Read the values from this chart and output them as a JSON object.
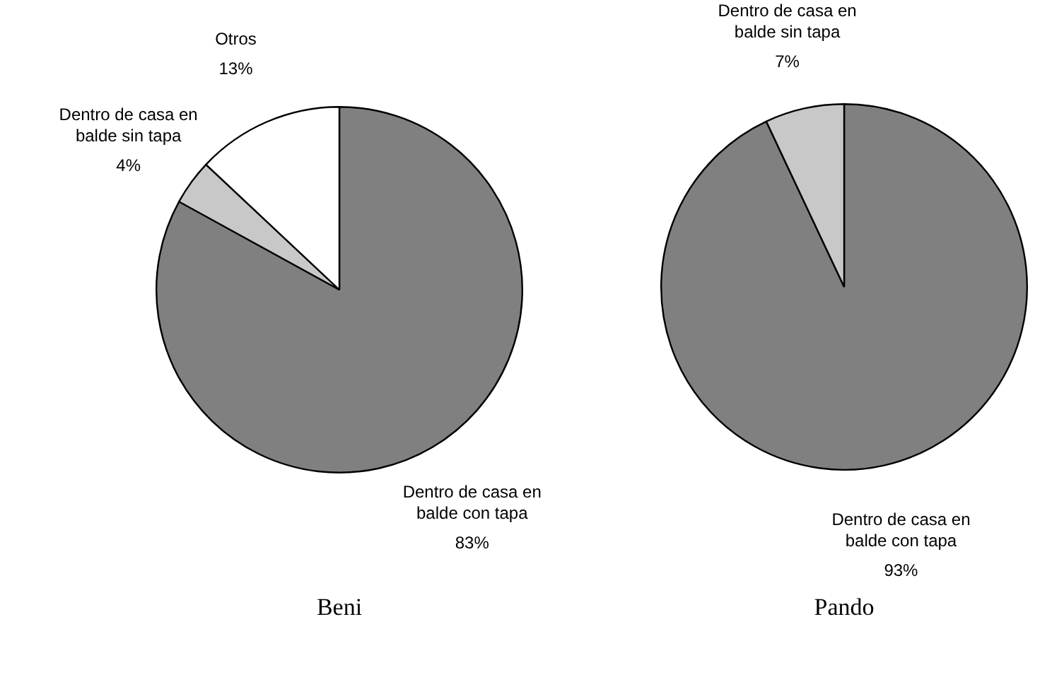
{
  "chart_data": [
    {
      "type": "pie",
      "title": "Beni",
      "categories": [
        "Dentro de casa en balde con tapa",
        "Dentro de casa en balde sin tapa",
        "Otros"
      ],
      "values": [
        83,
        4,
        13
      ],
      "value_labels": [
        "83%",
        "4%",
        "13%"
      ],
      "colors": [
        "#808080",
        "#c8c8c8",
        "#ffffff"
      ],
      "legend": false
    },
    {
      "type": "pie",
      "title": "Pando",
      "categories": [
        "Dentro de casa en balde con tapa",
        "Dentro de casa en balde sin tapa"
      ],
      "values": [
        93,
        7
      ],
      "value_labels": [
        "93%",
        "7%"
      ],
      "colors": [
        "#808080",
        "#c8c8c8"
      ],
      "legend": false
    }
  ]
}
